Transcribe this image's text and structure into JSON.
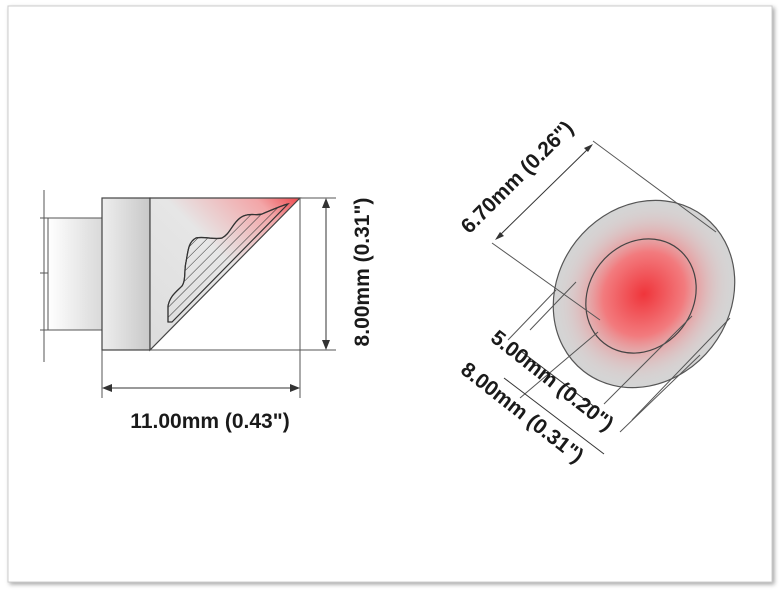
{
  "side_view": {
    "width_label": "11.00mm (0.43\")",
    "height_label": "8.00mm (0.31\")"
  },
  "face_view": {
    "length_label": "6.70mm (0.26\")",
    "inner_width_label": "5.00mm (0.20\")",
    "outer_width_label": "8.00mm (0.31\")"
  },
  "colors": {
    "heat": "#e8202a",
    "body_gray": "#cfcfcf",
    "line": "#444444"
  }
}
